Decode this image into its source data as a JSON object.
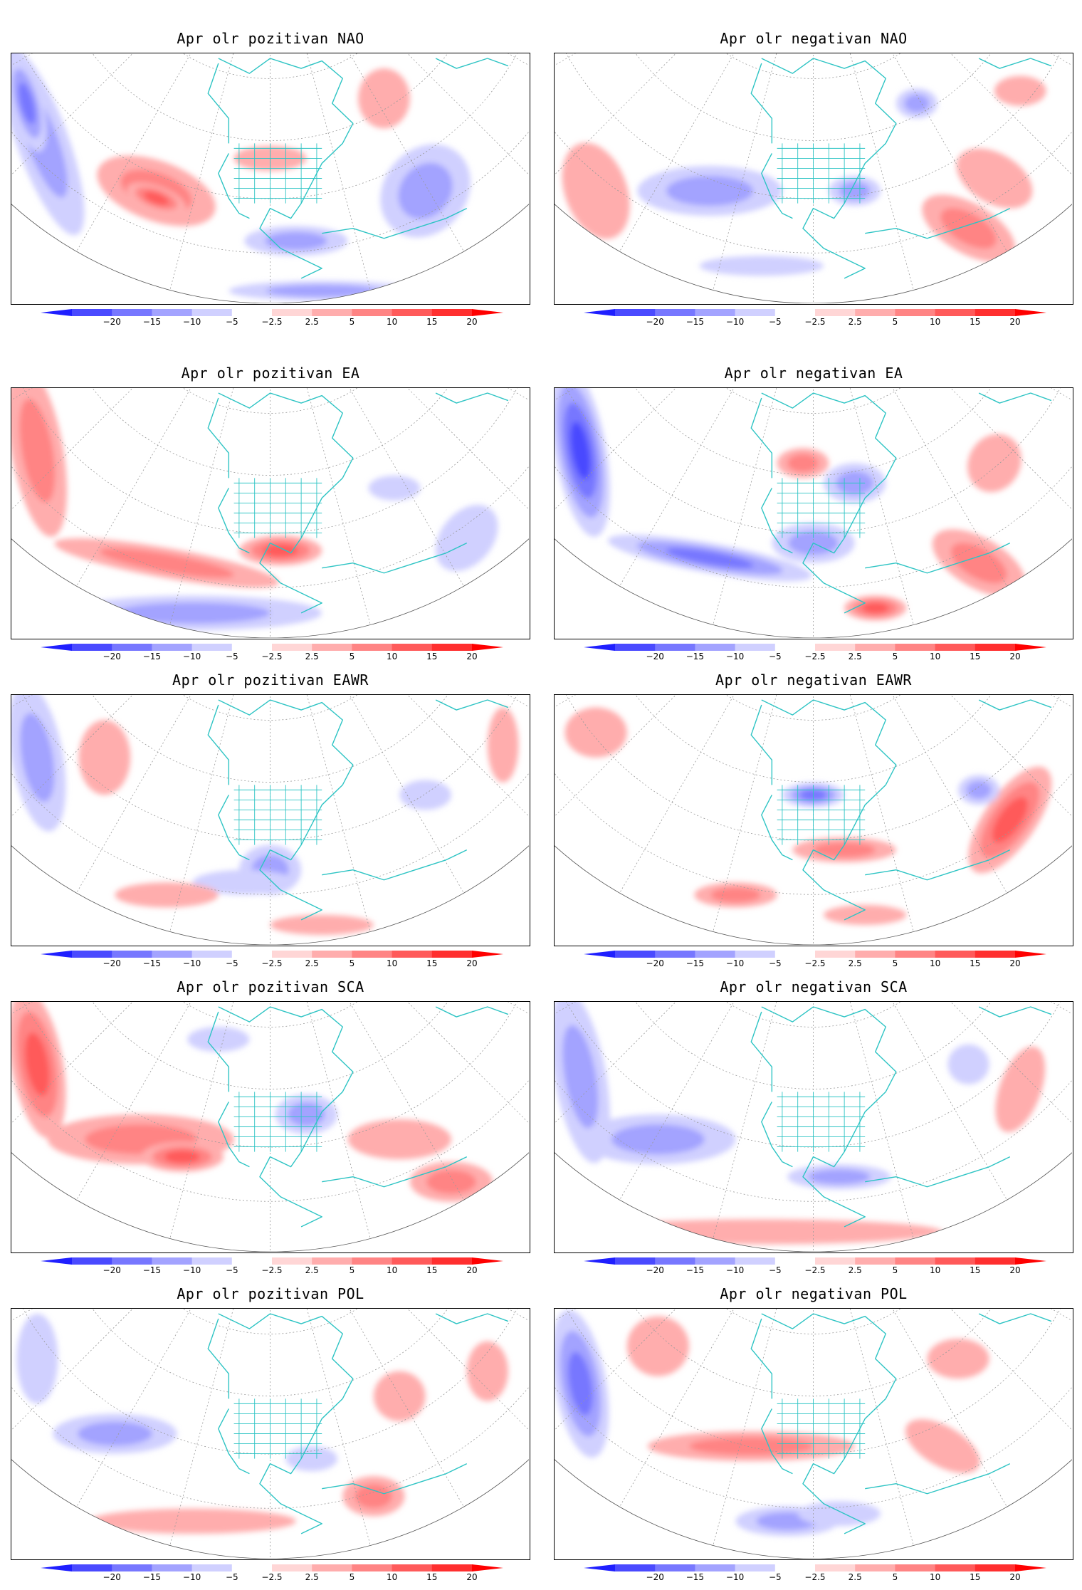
{
  "colorbar": {
    "tick_labels": [
      "-20",
      "-15",
      "-10",
      "-5",
      "-2.5",
      "2.5",
      "5",
      "10",
      "15",
      "20"
    ],
    "levels": [
      -20,
      -15,
      -10,
      -5,
      -2.5,
      2.5,
      5,
      10,
      15,
      20
    ],
    "colors": [
      "#1f1fff",
      "#4a4aff",
      "#7777ff",
      "#a3a3ff",
      "#d0d0ff",
      "#ffffff",
      "#ffd6d6",
      "#ffadad",
      "#ff8484",
      "#ff5a5a",
      "#ff2f2f",
      "#ff0000"
    ]
  },
  "coastline_color": "#2ec4c4",
  "panels": [
    {
      "title": "Apr olr pozitivan NAO",
      "pattern": "NAO",
      "phase": "pozitivan"
    },
    {
      "title": "Apr olr negativan NAO",
      "pattern": "NAO",
      "phase": "negativan"
    },
    {
      "title": "Apr olr pozitivan EA",
      "pattern": "EA",
      "phase": "pozitivan"
    },
    {
      "title": "Apr olr negativan EA",
      "pattern": "EA",
      "phase": "negativan"
    },
    {
      "title": "Apr olr pozitivan EAWR",
      "pattern": "EAWR",
      "phase": "pozitivan"
    },
    {
      "title": "Apr olr negativan EAWR",
      "pattern": "EAWR",
      "phase": "negativan"
    },
    {
      "title": "Apr olr pozitivan SCA",
      "pattern": "SCA",
      "phase": "pozitivan"
    },
    {
      "title": "Apr olr negativan SCA",
      "pattern": "SCA",
      "phase": "negativan"
    },
    {
      "title": "Apr olr pozitivan POL",
      "pattern": "POL",
      "phase": "pozitivan"
    },
    {
      "title": "Apr olr negativan POL",
      "pattern": "POL",
      "phase": "negativan"
    }
  ]
}
